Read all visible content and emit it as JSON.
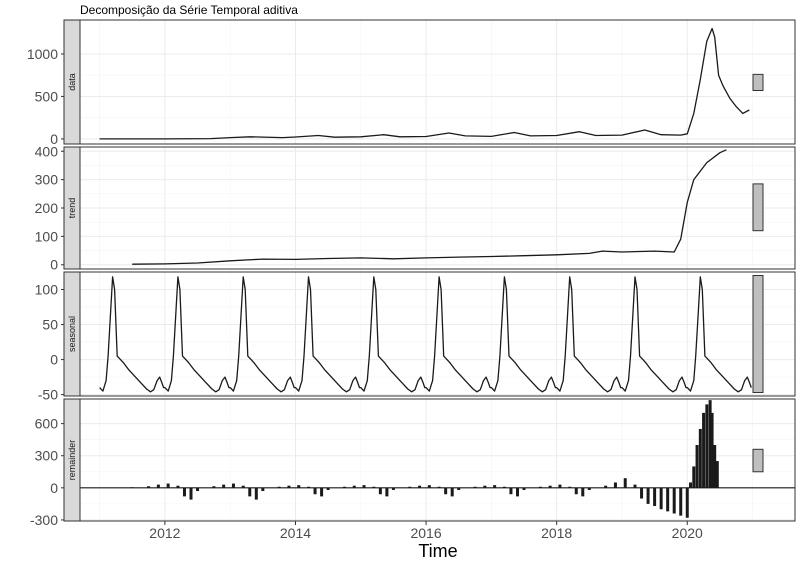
{
  "chart_data": {
    "type": "line",
    "title": "Decomposição da Série Temporal aditiva",
    "xlabel": "Time",
    "x_ticks": [
      2012,
      2014,
      2016,
      2018,
      2020
    ],
    "xlim": [
      2010.7,
      2021.65
    ],
    "colors": {
      "line": "#1a1a1a",
      "strip": "#d9d9d9",
      "grid": "#ebebeb",
      "range_bar": "#bfbfbf"
    },
    "panels": [
      {
        "name": "data",
        "type": "line",
        "ylim": [
          -60,
          1400
        ],
        "y_ticks": [
          0,
          500,
          1000
        ],
        "range_bar": [
          570,
          760
        ],
        "x": [
          2011.0,
          2012.0,
          2012.7,
          2013.0,
          2013.3,
          2013.8,
          2014.0,
          2014.35,
          2014.6,
          2015.0,
          2015.35,
          2015.6,
          2016.0,
          2016.35,
          2016.6,
          2017.0,
          2017.35,
          2017.6,
          2018.0,
          2018.35,
          2018.6,
          2019.0,
          2019.35,
          2019.6,
          2019.9,
          2020.0,
          2020.1,
          2020.2,
          2020.3,
          2020.38,
          2020.42,
          2020.48,
          2020.55,
          2020.65,
          2020.75,
          2020.85,
          2020.95
        ],
        "y": [
          0,
          0,
          3,
          15,
          25,
          15,
          22,
          40,
          20,
          25,
          50,
          25,
          28,
          70,
          35,
          30,
          75,
          35,
          40,
          85,
          40,
          45,
          105,
          50,
          45,
          60,
          300,
          700,
          1150,
          1300,
          1200,
          750,
          620,
          480,
          380,
          300,
          340
        ]
      },
      {
        "name": "trend",
        "type": "line",
        "ylim": [
          -15,
          415
        ],
        "y_ticks": [
          0,
          100,
          200,
          300,
          400
        ],
        "range_bar": [
          120,
          285
        ],
        "x": [
          2011.5,
          2012.0,
          2012.5,
          2013.0,
          2013.5,
          2014.0,
          2014.5,
          2015.0,
          2015.5,
          2016.0,
          2016.5,
          2017.0,
          2017.5,
          2018.0,
          2018.5,
          2018.7,
          2019.0,
          2019.5,
          2019.8,
          2019.9,
          2020.0,
          2020.1,
          2020.3,
          2020.5,
          2020.6
        ],
        "y": [
          2,
          3,
          6,
          14,
          20,
          19,
          22,
          24,
          21,
          24,
          27,
          29,
          32,
          35,
          40,
          48,
          45,
          48,
          45,
          90,
          220,
          300,
          360,
          395,
          405
        ]
      },
      {
        "name": "seasonal",
        "type": "line",
        "ylim": [
          -52,
          125
        ],
        "y_ticks": [
          -50,
          0,
          50,
          100
        ],
        "range_bar": [
          -47,
          120
        ],
        "period_start": 2011.0,
        "period_end": 2021.0,
        "cycle_x": [
          0.0,
          0.05,
          0.1,
          0.13,
          0.17,
          0.2,
          0.23,
          0.27,
          0.32,
          0.37,
          0.45,
          0.55,
          0.65,
          0.72,
          0.78,
          0.83,
          0.88,
          0.92,
          0.95,
          0.98
        ],
        "cycle_y": [
          -40,
          -45,
          -30,
          5,
          70,
          118,
          100,
          5,
          0,
          -5,
          -15,
          -25,
          -35,
          -42,
          -46,
          -43,
          -30,
          -25,
          -32,
          -40
        ]
      },
      {
        "name": "remainder",
        "type": "bar",
        "ylim": [
          -310,
          830
        ],
        "y_ticks": [
          -300,
          0,
          300,
          600
        ],
        "range_bar": [
          150,
          360
        ],
        "x": [
          2011.5,
          2011.75,
          2011.9,
          2012.05,
          2012.2,
          2012.3,
          2012.4,
          2012.5,
          2012.75,
          2012.9,
          2013.05,
          2013.2,
          2013.3,
          2013.4,
          2013.5,
          2013.75,
          2013.9,
          2014.05,
          2014.2,
          2014.3,
          2014.4,
          2014.5,
          2014.75,
          2014.9,
          2015.05,
          2015.2,
          2015.3,
          2015.4,
          2015.5,
          2015.75,
          2015.9,
          2016.05,
          2016.2,
          2016.3,
          2016.4,
          2016.5,
          2016.75,
          2016.9,
          2017.05,
          2017.2,
          2017.3,
          2017.4,
          2017.5,
          2017.75,
          2017.9,
          2018.05,
          2018.2,
          2018.3,
          2018.4,
          2018.5,
          2018.75,
          2018.9,
          2019.05,
          2019.2,
          2019.3,
          2019.4,
          2019.5,
          2019.6,
          2019.7,
          2019.8,
          2019.9,
          2020.0,
          2020.05,
          2020.1,
          2020.15,
          2020.2,
          2020.25,
          2020.3,
          2020.35,
          2020.38,
          2020.42,
          2020.46
        ],
        "y": [
          5,
          15,
          30,
          40,
          20,
          -80,
          -110,
          -30,
          15,
          30,
          40,
          20,
          -80,
          -110,
          -30,
          10,
          20,
          25,
          10,
          -60,
          -80,
          -20,
          10,
          20,
          25,
          10,
          -60,
          -80,
          -20,
          10,
          20,
          25,
          10,
          -60,
          -80,
          -20,
          10,
          20,
          25,
          10,
          -60,
          -80,
          -20,
          10,
          20,
          30,
          10,
          -60,
          -80,
          -20,
          20,
          50,
          90,
          30,
          -100,
          -150,
          -170,
          -200,
          -220,
          -240,
          -260,
          -280,
          50,
          200,
          400,
          550,
          700,
          780,
          820,
          700,
          400,
          250
        ]
      }
    ]
  }
}
